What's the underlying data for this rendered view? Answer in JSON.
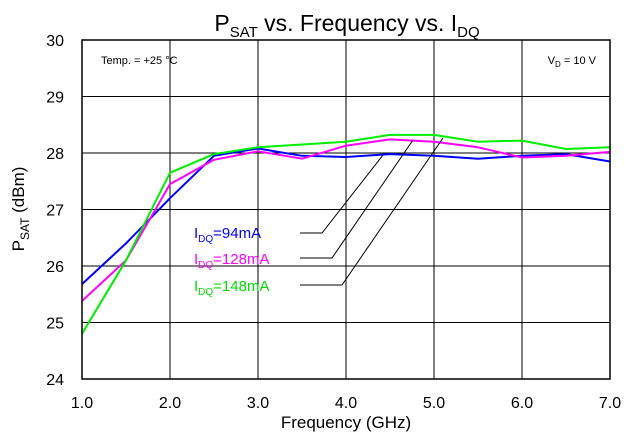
{
  "chart_data": {
    "type": "line",
    "title": {
      "main": "P",
      "sub": "SAT",
      "rest": " vs. Frequency vs. I",
      "sub2": "DQ"
    },
    "xlabel": "Frequency (GHz)",
    "ylabel": {
      "main": "P",
      "sub": "SAT",
      "rest": " (dBm)"
    },
    "xlim": [
      1.0,
      7.0
    ],
    "ylim": [
      24,
      30
    ],
    "xticks": [
      "1.0",
      "2.0",
      "3.0",
      "4.0",
      "5.0",
      "6.0",
      "7.0"
    ],
    "yticks": [
      "24",
      "25",
      "26",
      "27",
      "28",
      "29",
      "30"
    ],
    "grid": true,
    "annotations": {
      "temp": "Temp. = +25 °C",
      "vd": {
        "main": "V",
        "sub": "D",
        "rest": " = 10 V"
      }
    },
    "series": [
      {
        "name": "IDQ=94mA",
        "label": {
          "main": "I",
          "sub": "DQ",
          "rest": "=94mA"
        },
        "color": "#0000FF",
        "x": [
          1.0,
          1.5,
          2.0,
          2.5,
          3.0,
          3.5,
          4.0,
          4.5,
          5.0,
          5.5,
          6.0,
          6.5,
          7.0
        ],
        "y": [
          25.68,
          26.4,
          27.2,
          27.95,
          28.08,
          27.95,
          27.93,
          27.98,
          27.95,
          27.9,
          27.95,
          27.98,
          27.85
        ]
      },
      {
        "name": "IDQ=128mA",
        "label": {
          "main": "I",
          "sub": "DQ",
          "rest": "=128mA"
        },
        "color": "#FF00FF",
        "x": [
          1.0,
          1.5,
          2.0,
          2.5,
          3.0,
          3.5,
          4.0,
          4.5,
          5.0,
          5.5,
          6.0,
          6.5,
          7.0
        ],
        "y": [
          25.38,
          26.1,
          27.45,
          27.88,
          28.03,
          27.9,
          28.13,
          28.24,
          28.2,
          28.1,
          27.92,
          27.95,
          28.02
        ]
      },
      {
        "name": "IDQ=148mA",
        "label": {
          "main": "I",
          "sub": "DQ",
          "rest": "=148mA"
        },
        "color": "#00EE00",
        "x": [
          1.0,
          1.5,
          2.0,
          2.5,
          3.0,
          3.5,
          4.0,
          4.5,
          5.0,
          5.5,
          6.0,
          6.5,
          7.0
        ],
        "y": [
          24.8,
          26.1,
          27.65,
          27.98,
          28.1,
          28.15,
          28.2,
          28.32,
          28.32,
          28.2,
          28.22,
          28.07,
          28.1
        ]
      }
    ]
  }
}
